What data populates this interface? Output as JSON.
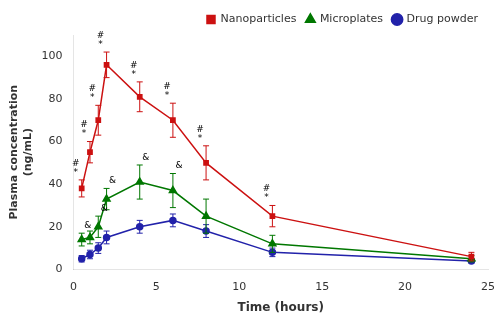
{
  "chart_data": {
    "type": "line",
    "xlabel": "Time (hours)",
    "ylabel": "Plasma concentration\n(ng/mL)",
    "x": [
      0.5,
      1,
      1.5,
      2,
      4,
      6,
      8,
      12,
      24
    ],
    "series": [
      {
        "name": "Drug powder",
        "color": "#2222aa",
        "marker": "circle",
        "values": [
          5,
          7,
          10,
          15,
          20,
          23,
          18,
          8,
          4
        ],
        "errors": [
          1.5,
          2,
          2.5,
          3,
          3,
          3,
          3,
          2,
          1
        ]
      },
      {
        "name": "Microplates",
        "color": "#007700",
        "marker": "triangle",
        "values": [
          14,
          15,
          20,
          33,
          41,
          37,
          25,
          12,
          5
        ],
        "errors": [
          3,
          3,
          5,
          5,
          8,
          8,
          8,
          4,
          1.5
        ]
      },
      {
        "name": "Nanoparticles",
        "color": "#cc1111",
        "marker": "square",
        "values": [
          38,
          55,
          70,
          96,
          81,
          70,
          50,
          25,
          6
        ],
        "errors": [
          4,
          5,
          7,
          6,
          7,
          8,
          8,
          5,
          2
        ]
      }
    ],
    "annotations": [
      {
        "text": "#\n*",
        "series": "Nanoparticles",
        "x": [
          0.5,
          1,
          1.5,
          2,
          4,
          6,
          8,
          12
        ]
      },
      {
        "text": "&",
        "series": "Microplates",
        "x": [
          0.5,
          1.5,
          2,
          4,
          6
        ]
      }
    ],
    "xlim": [
      0,
      25
    ],
    "ylim": [
      0,
      110
    ],
    "xticks": [
      0,
      5,
      10,
      15,
      20,
      25
    ],
    "yticks": [
      0,
      20,
      40,
      60,
      80,
      100
    ],
    "grid": false,
    "legend": "upper right"
  }
}
